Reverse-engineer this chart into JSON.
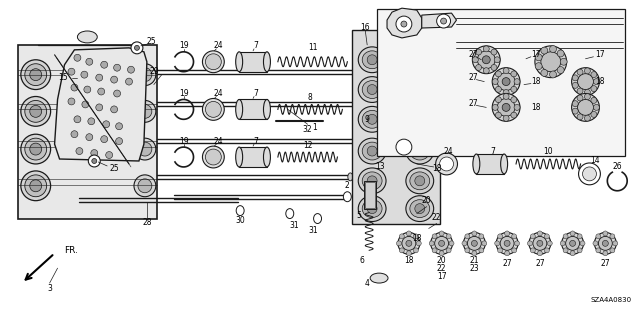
{
  "bg_color": "#ffffff",
  "fig_width": 6.4,
  "fig_height": 3.19,
  "dpi": 100,
  "diagram_code": "SZA4A0830",
  "line_color": "#1a1a1a",
  "text_color": "#000000",
  "fs": 5.5,
  "fs_small": 4.8
}
